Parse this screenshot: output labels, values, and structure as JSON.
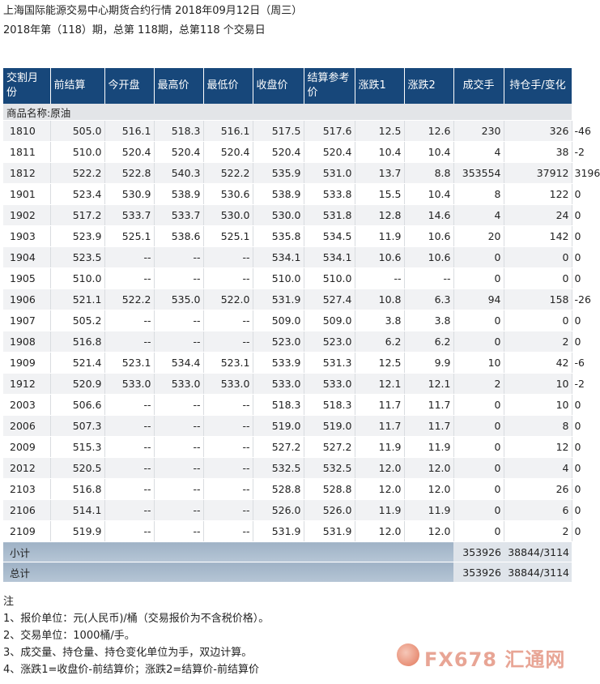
{
  "header": {
    "title": "上海国际能源交易中心期货合约行情 2018年09月12日（周三）",
    "subtitle": "2018年第（118）期，总第 118期，总第118 个交易日"
  },
  "table": {
    "columns": [
      "交割月份",
      "前结算",
      "今开盘",
      "最高价",
      "最低价",
      "收盘价",
      "结算参考价",
      "涨跌1",
      "涨跌2",
      "成交手",
      "持仓手/变化"
    ],
    "category": "商品名称:原油",
    "rows": [
      {
        "month": "1810",
        "prev": "505.0",
        "open": "516.1",
        "high": "518.3",
        "low": "516.1",
        "close": "517.5",
        "ref": "517.6",
        "chg1": "12.5",
        "chg2": "12.6",
        "vol": "230",
        "oi": "326",
        "oichg": "-46"
      },
      {
        "month": "1811",
        "prev": "510.0",
        "open": "520.4",
        "high": "520.4",
        "low": "520.4",
        "close": "520.4",
        "ref": "520.4",
        "chg1": "10.4",
        "chg2": "10.4",
        "vol": "4",
        "oi": "38",
        "oichg": "-2"
      },
      {
        "month": "1812",
        "prev": "522.2",
        "open": "522.8",
        "high": "540.3",
        "low": "522.2",
        "close": "535.9",
        "ref": "531.0",
        "chg1": "13.7",
        "chg2": "8.8",
        "vol": "353554",
        "oi": "37912",
        "oichg": "3196"
      },
      {
        "month": "1901",
        "prev": "523.4",
        "open": "530.9",
        "high": "538.9",
        "low": "530.6",
        "close": "538.9",
        "ref": "533.8",
        "chg1": "15.5",
        "chg2": "10.4",
        "vol": "8",
        "oi": "122",
        "oichg": "0"
      },
      {
        "month": "1902",
        "prev": "517.2",
        "open": "533.7",
        "high": "533.7",
        "low": "530.0",
        "close": "530.0",
        "ref": "531.8",
        "chg1": "12.8",
        "chg2": "14.6",
        "vol": "4",
        "oi": "24",
        "oichg": "0"
      },
      {
        "month": "1903",
        "prev": "523.9",
        "open": "525.1",
        "high": "538.6",
        "low": "525.1",
        "close": "535.8",
        "ref": "534.5",
        "chg1": "11.9",
        "chg2": "10.6",
        "vol": "20",
        "oi": "142",
        "oichg": "0"
      },
      {
        "month": "1904",
        "prev": "523.5",
        "open": "--",
        "high": "--",
        "low": "--",
        "close": "534.1",
        "ref": "534.1",
        "chg1": "10.6",
        "chg2": "10.6",
        "vol": "0",
        "oi": "0",
        "oichg": "0"
      },
      {
        "month": "1905",
        "prev": "510.0",
        "open": "--",
        "high": "--",
        "low": "--",
        "close": "510.0",
        "ref": "510.0",
        "chg1": "--",
        "chg2": "--",
        "vol": "0",
        "oi": "0",
        "oichg": "0"
      },
      {
        "month": "1906",
        "prev": "521.1",
        "open": "522.2",
        "high": "535.0",
        "low": "522.0",
        "close": "531.9",
        "ref": "527.4",
        "chg1": "10.8",
        "chg2": "6.3",
        "vol": "94",
        "oi": "158",
        "oichg": "-26"
      },
      {
        "month": "1907",
        "prev": "505.2",
        "open": "--",
        "high": "--",
        "low": "--",
        "close": "509.0",
        "ref": "509.0",
        "chg1": "3.8",
        "chg2": "3.8",
        "vol": "0",
        "oi": "0",
        "oichg": "0"
      },
      {
        "month": "1908",
        "prev": "516.8",
        "open": "--",
        "high": "--",
        "low": "--",
        "close": "523.0",
        "ref": "523.0",
        "chg1": "6.2",
        "chg2": "6.2",
        "vol": "0",
        "oi": "2",
        "oichg": "0"
      },
      {
        "month": "1909",
        "prev": "521.4",
        "open": "523.1",
        "high": "534.4",
        "low": "523.1",
        "close": "533.9",
        "ref": "531.3",
        "chg1": "12.5",
        "chg2": "9.9",
        "vol": "10",
        "oi": "42",
        "oichg": "-6"
      },
      {
        "month": "1912",
        "prev": "520.9",
        "open": "533.0",
        "high": "533.0",
        "low": "533.0",
        "close": "533.0",
        "ref": "533.0",
        "chg1": "12.1",
        "chg2": "12.1",
        "vol": "2",
        "oi": "10",
        "oichg": "-2"
      },
      {
        "month": "2003",
        "prev": "506.6",
        "open": "--",
        "high": "--",
        "low": "--",
        "close": "518.3",
        "ref": "518.3",
        "chg1": "11.7",
        "chg2": "11.7",
        "vol": "0",
        "oi": "10",
        "oichg": "0"
      },
      {
        "month": "2006",
        "prev": "507.3",
        "open": "--",
        "high": "--",
        "low": "--",
        "close": "519.0",
        "ref": "519.0",
        "chg1": "11.7",
        "chg2": "11.7",
        "vol": "0",
        "oi": "8",
        "oichg": "0"
      },
      {
        "month": "2009",
        "prev": "515.3",
        "open": "--",
        "high": "--",
        "low": "--",
        "close": "527.2",
        "ref": "527.2",
        "chg1": "11.9",
        "chg2": "11.9",
        "vol": "0",
        "oi": "12",
        "oichg": "0"
      },
      {
        "month": "2012",
        "prev": "520.5",
        "open": "--",
        "high": "--",
        "low": "--",
        "close": "532.5",
        "ref": "532.5",
        "chg1": "12.0",
        "chg2": "12.0",
        "vol": "0",
        "oi": "4",
        "oichg": "0"
      },
      {
        "month": "2103",
        "prev": "516.8",
        "open": "--",
        "high": "--",
        "low": "--",
        "close": "528.8",
        "ref": "528.8",
        "chg1": "12.0",
        "chg2": "12.0",
        "vol": "0",
        "oi": "26",
        "oichg": "0"
      },
      {
        "month": "2106",
        "prev": "514.1",
        "open": "--",
        "high": "--",
        "low": "--",
        "close": "526.0",
        "ref": "526.0",
        "chg1": "11.9",
        "chg2": "11.9",
        "vol": "0",
        "oi": "6",
        "oichg": "0"
      },
      {
        "month": "2109",
        "prev": "519.9",
        "open": "--",
        "high": "--",
        "low": "--",
        "close": "531.9",
        "ref": "531.9",
        "chg1": "12.0",
        "chg2": "12.0",
        "vol": "0",
        "oi": "2",
        "oichg": "0"
      }
    ],
    "subtotal": {
      "label": "小计",
      "vol": "353926",
      "oi": "38844/3114"
    },
    "total": {
      "label": "总计",
      "vol": "353926",
      "oi": "38844/3114"
    }
  },
  "notes": {
    "heading": "注",
    "items": [
      "1、报价单位：元(人民币)/桶（交易报价为不含税价格）。",
      "2、交易单位：1000桶/手。",
      "3、成交量、持仓量、持仓变化单位为手，双边计算。",
      "4、涨跌1=收盘价-前结算价；涨跌2=结算价-前结算价"
    ]
  },
  "watermark": {
    "text": "FX678 汇通网",
    "icon": "fx678-logo-icon"
  }
}
